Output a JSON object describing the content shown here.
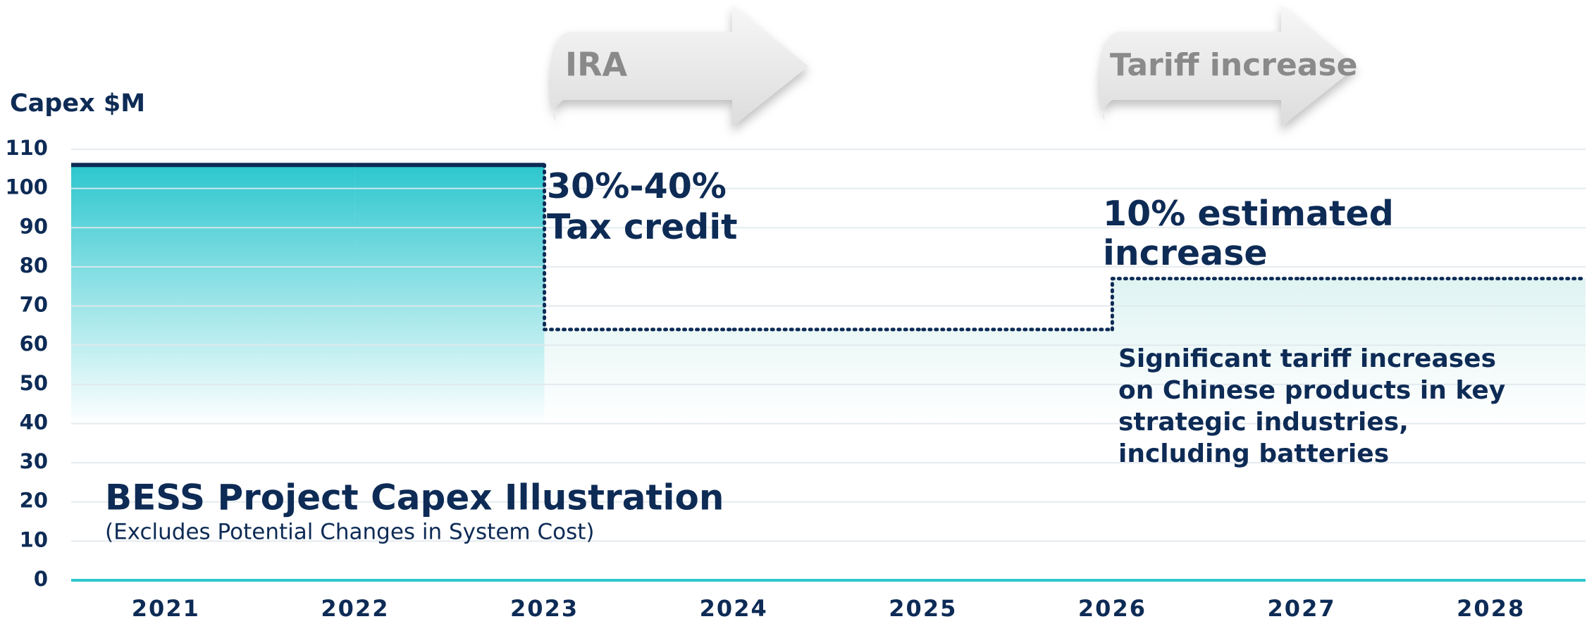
{
  "chart_data": {
    "type": "step_area",
    "y_axis_label": "Capex $M",
    "title": "BESS Project Capex Illustration",
    "subtitle": "(Excludes Potential Changes in System Cost)",
    "categories": [
      "2021",
      "2022",
      "2023",
      "2024",
      "2025",
      "2026",
      "2027",
      "2028"
    ],
    "values": [
      106,
      106,
      64,
      64,
      64,
      77,
      77,
      77
    ],
    "line_styles": [
      "solid",
      "solid",
      "dotted",
      "dotted",
      "dotted",
      "dotted",
      "dotted",
      "dotted"
    ],
    "color": "#0d2b55",
    "fill_color": "#2ec7cf",
    "light_fill_color": "#c6ebe8",
    "ylim": [
      0,
      110
    ],
    "yticks": [
      0,
      10,
      20,
      30,
      40,
      50,
      60,
      70,
      80,
      90,
      100,
      110
    ],
    "grid": true,
    "arrows": [
      "IRA",
      "Tariff increase"
    ],
    "tax_credit_label": [
      "30%-40%",
      "Tax credit"
    ],
    "increase_label": [
      "10% estimated",
      "increase"
    ],
    "tariff_note": [
      "Significant tariff increases",
      "on Chinese products in key",
      "strategic industries,",
      "including batteries"
    ]
  }
}
